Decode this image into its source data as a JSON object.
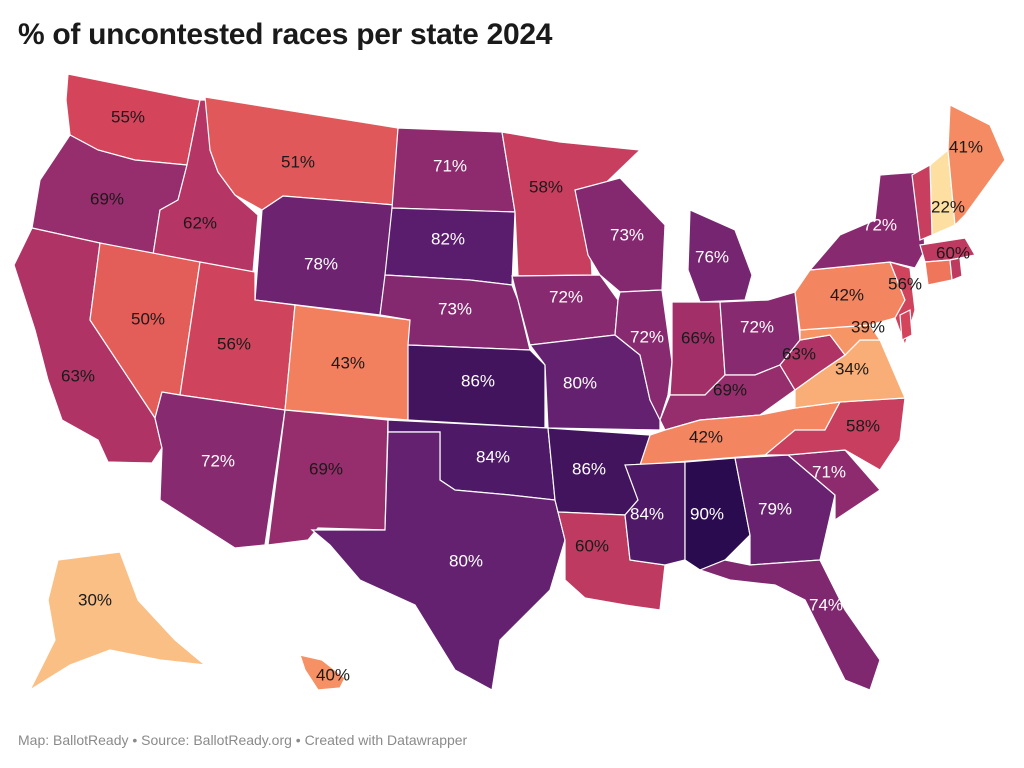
{
  "title": "% of uncontested races per state 2024",
  "footer": "Map: BallotReady • Source: BallotReady.org • Created with Datawrapper",
  "color_scale": {
    "low": "#fde8a8",
    "high": "#2a0b4f",
    "stops": [
      "#fde8a8",
      "#fbc58a",
      "#f79e6a",
      "#ef6f58",
      "#d4455b",
      "#ad3166",
      "#862a70",
      "#5e1f70",
      "#2a0b4f"
    ]
  },
  "states": [
    {
      "id": "WA",
      "value": 55,
      "label": "55%"
    },
    {
      "id": "OR",
      "value": 69,
      "label": "69%"
    },
    {
      "id": "CA",
      "value": 63,
      "label": "63%"
    },
    {
      "id": "ID",
      "value": 62,
      "label": "62%"
    },
    {
      "id": "NV",
      "value": 50,
      "label": "50%"
    },
    {
      "id": "MT",
      "value": 51,
      "label": "51%"
    },
    {
      "id": "WY",
      "value": 78,
      "label": "78%"
    },
    {
      "id": "UT",
      "value": 56,
      "label": "56%"
    },
    {
      "id": "AZ",
      "value": 72,
      "label": "72%"
    },
    {
      "id": "CO",
      "value": 43,
      "label": "43%"
    },
    {
      "id": "NM",
      "value": 69,
      "label": "69%"
    },
    {
      "id": "ND",
      "value": 71,
      "label": "71%"
    },
    {
      "id": "SD",
      "value": 82,
      "label": "82%"
    },
    {
      "id": "NE",
      "value": 73,
      "label": "73%"
    },
    {
      "id": "KS",
      "value": 86,
      "label": "86%"
    },
    {
      "id": "OK",
      "value": 84,
      "label": "84%"
    },
    {
      "id": "TX",
      "value": 80,
      "label": "80%"
    },
    {
      "id": "MN",
      "value": 58,
      "label": "58%"
    },
    {
      "id": "IA",
      "value": 72,
      "label": "72%"
    },
    {
      "id": "MO",
      "value": 80,
      "label": "80%"
    },
    {
      "id": "AR",
      "value": 86,
      "label": "86%"
    },
    {
      "id": "LA",
      "value": 60,
      "label": "60%"
    },
    {
      "id": "WI",
      "value": 73,
      "label": "73%"
    },
    {
      "id": "IL",
      "value": 72,
      "label": "72%"
    },
    {
      "id": "MI",
      "value": 76,
      "label": "76%"
    },
    {
      "id": "IN",
      "value": 66,
      "label": "66%"
    },
    {
      "id": "OH",
      "value": 72,
      "label": "72%"
    },
    {
      "id": "KY",
      "value": 69,
      "label": "69%"
    },
    {
      "id": "TN",
      "value": 42,
      "label": "42%"
    },
    {
      "id": "MS",
      "value": 84,
      "label": "84%"
    },
    {
      "id": "AL",
      "value": 90,
      "label": "90%"
    },
    {
      "id": "GA",
      "value": 79,
      "label": "79%"
    },
    {
      "id": "FL",
      "value": 74,
      "label": "74%"
    },
    {
      "id": "SC",
      "value": 71,
      "label": "71%"
    },
    {
      "id": "NC",
      "value": 58,
      "label": "58%"
    },
    {
      "id": "VA",
      "value": 34,
      "label": "34%"
    },
    {
      "id": "WV",
      "value": 63,
      "label": "63%"
    },
    {
      "id": "MD",
      "value": 39,
      "label": "39%"
    },
    {
      "id": "PA",
      "value": 42,
      "label": "42%"
    },
    {
      "id": "NJ",
      "value": 56,
      "label": "56%"
    },
    {
      "id": "NY",
      "value": 72,
      "label": "72%"
    },
    {
      "id": "MA",
      "value": 60,
      "label": "60%"
    },
    {
      "id": "NH",
      "value": 22,
      "label": "22%"
    },
    {
      "id": "ME",
      "value": 41,
      "label": "41%"
    },
    {
      "id": "VT",
      "value": 58,
      "label": ""
    },
    {
      "id": "CT",
      "value": 45,
      "label": ""
    },
    {
      "id": "RI",
      "value": 60,
      "label": ""
    },
    {
      "id": "DE",
      "value": 55,
      "label": ""
    },
    {
      "id": "AK",
      "value": 30,
      "label": "30%"
    },
    {
      "id": "HI",
      "value": 40,
      "label": "40%"
    }
  ]
}
